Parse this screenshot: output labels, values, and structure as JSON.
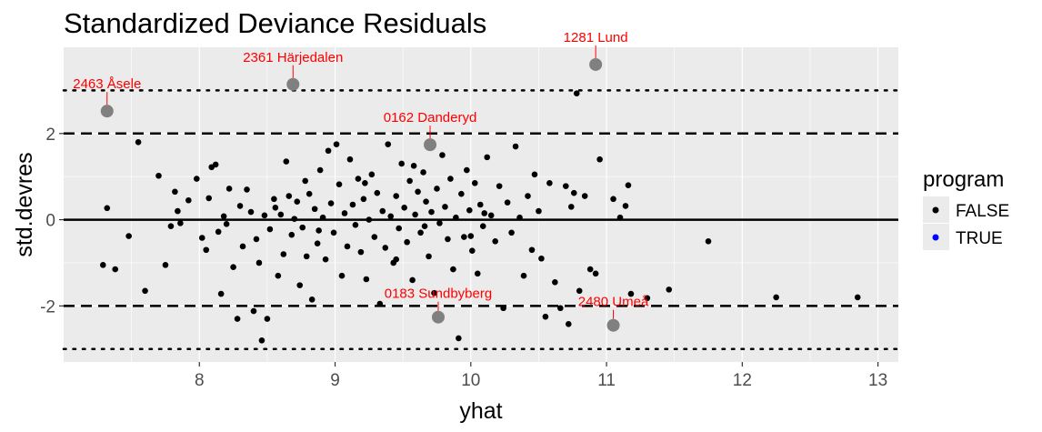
{
  "chart_data": {
    "type": "scatter",
    "title": "Standardized Deviance Residuals",
    "xlabel": "yhat",
    "ylabel": "std.devres",
    "xlim": [
      7.0,
      13.15
    ],
    "ylim": [
      -3.3,
      4.0
    ],
    "xticks": [
      8,
      9,
      10,
      11,
      12,
      13
    ],
    "yticks": [
      -2,
      0,
      2
    ],
    "grid": true,
    "legend": {
      "title": "program",
      "position": "right",
      "entries": [
        {
          "label": "FALSE",
          "color": "#000000"
        },
        {
          "label": "TRUE",
          "color": "#0000ff"
        }
      ]
    },
    "reference_lines": [
      {
        "y": 0,
        "style": "solid"
      },
      {
        "y": 2,
        "style": "dashed"
      },
      {
        "y": -2,
        "style": "dashed"
      },
      {
        "y": 3,
        "style": "dotted"
      },
      {
        "y": -3,
        "style": "dotted"
      }
    ],
    "highlighted_color": "#808080",
    "highlighted": [
      {
        "label": "2463 Åsele",
        "x": 7.32,
        "y": 2.52
      },
      {
        "label": "2361 Härjedalen",
        "x": 8.69,
        "y": 3.14
      },
      {
        "label": "1281 Lund",
        "x": 10.92,
        "y": 3.6
      },
      {
        "label": "0162 Danderyd",
        "x": 9.7,
        "y": 1.74
      },
      {
        "label": "0183 Sundbyberg",
        "x": 9.76,
        "y": -2.26
      },
      {
        "label": "2480 Umeå",
        "x": 11.05,
        "y": -2.45
      }
    ],
    "series": [
      {
        "name": "FALSE",
        "color": "#000000",
        "points": [
          [
            7.29,
            -1.05
          ],
          [
            7.32,
            0.27
          ],
          [
            7.38,
            -1.15
          ],
          [
            7.48,
            -0.38
          ],
          [
            7.55,
            1.8
          ],
          [
            7.6,
            -1.65
          ],
          [
            7.7,
            1.02
          ],
          [
            7.75,
            -1.05
          ],
          [
            7.79,
            -0.15
          ],
          [
            7.82,
            0.65
          ],
          [
            7.84,
            0.2
          ],
          [
            7.86,
            -0.08
          ],
          [
            7.92,
            0.45
          ],
          [
            7.98,
            0.95
          ],
          [
            8.02,
            -0.42
          ],
          [
            8.05,
            -0.7
          ],
          [
            8.07,
            0.5
          ],
          [
            8.09,
            1.22
          ],
          [
            8.12,
            1.28
          ],
          [
            8.14,
            -0.28
          ],
          [
            8.16,
            -1.72
          ],
          [
            8.18,
            0.08
          ],
          [
            8.2,
            -0.1
          ],
          [
            8.22,
            0.72
          ],
          [
            8.25,
            -1.1
          ],
          [
            8.28,
            -2.3
          ],
          [
            8.3,
            0.32
          ],
          [
            8.32,
            -0.62
          ],
          [
            8.35,
            0.7
          ],
          [
            8.38,
            0.18
          ],
          [
            8.4,
            -2.12
          ],
          [
            8.42,
            -0.45
          ],
          [
            8.44,
            -1.0
          ],
          [
            8.46,
            -2.8
          ],
          [
            8.48,
            0.1
          ],
          [
            8.5,
            -2.3
          ],
          [
            8.52,
            -0.22
          ],
          [
            8.55,
            0.48
          ],
          [
            8.58,
            -1.3
          ],
          [
            8.6,
            0.12
          ],
          [
            8.62,
            -0.8
          ],
          [
            8.64,
            1.35
          ],
          [
            8.66,
            0.55
          ],
          [
            8.68,
            -0.35
          ],
          [
            8.7,
            0.02
          ],
          [
            8.72,
            0.42
          ],
          [
            8.74,
            -1.52
          ],
          [
            8.76,
            -0.18
          ],
          [
            8.78,
            0.9
          ],
          [
            8.79,
            -0.85
          ],
          [
            8.81,
            0.6
          ],
          [
            8.83,
            -1.85
          ],
          [
            8.85,
            0.25
          ],
          [
            8.87,
            -0.55
          ],
          [
            8.89,
            1.15
          ],
          [
            8.91,
            0.05
          ],
          [
            8.93,
            -0.92
          ],
          [
            8.95,
            1.6
          ],
          [
            8.97,
            0.38
          ],
          [
            8.99,
            -0.3
          ],
          [
            9.01,
            1.75
          ],
          [
            9.03,
            0.82
          ],
          [
            9.05,
            -1.3
          ],
          [
            9.07,
            0.15
          ],
          [
            9.09,
            -0.62
          ],
          [
            9.11,
            1.4
          ],
          [
            9.13,
            0.35
          ],
          [
            9.15,
            -0.12
          ],
          [
            9.17,
            0.95
          ],
          [
            9.19,
            -0.75
          ],
          [
            9.21,
            0.48
          ],
          [
            9.23,
            -1.38
          ],
          [
            9.25,
            0.0
          ],
          [
            9.27,
            1.05
          ],
          [
            9.29,
            -0.4
          ],
          [
            9.31,
            0.62
          ],
          [
            9.33,
            -1.95
          ],
          [
            9.35,
            0.2
          ],
          [
            9.37,
            -0.65
          ],
          [
            9.39,
            1.75
          ],
          [
            9.41,
            0.08
          ],
          [
            9.43,
            -1.0
          ],
          [
            9.45,
            0.55
          ],
          [
            9.47,
            -0.2
          ],
          [
            9.49,
            1.3
          ],
          [
            9.51,
            0.28
          ],
          [
            9.53,
            -0.52
          ],
          [
            9.55,
            0.9
          ],
          [
            9.57,
            -1.4
          ],
          [
            9.59,
            0.12
          ],
          [
            9.61,
            0.65
          ],
          [
            9.63,
            -0.3
          ],
          [
            9.65,
            1.1
          ],
          [
            9.67,
            0.42
          ],
          [
            9.69,
            -0.85
          ],
          [
            9.71,
            0.18
          ],
          [
            9.73,
            -1.7
          ],
          [
            9.75,
            0.72
          ],
          [
            9.77,
            -0.08
          ],
          [
            9.79,
            1.5
          ],
          [
            9.81,
            0.3
          ],
          [
            9.83,
            -0.45
          ],
          [
            9.85,
            0.95
          ],
          [
            9.87,
            -1.15
          ],
          [
            9.89,
            0.05
          ],
          [
            9.91,
            -2.75
          ],
          [
            9.93,
            0.6
          ],
          [
            9.95,
            -0.4
          ],
          [
            9.97,
            1.15
          ],
          [
            9.99,
            0.22
          ],
          [
            10.01,
            -0.72
          ],
          [
            10.03,
            0.85
          ],
          [
            10.05,
            -1.25
          ],
          [
            10.07,
            0.35
          ],
          [
            10.09,
            -0.15
          ],
          [
            10.12,
            1.45
          ],
          [
            10.15,
            0.1
          ],
          [
            10.18,
            -0.5
          ],
          [
            10.21,
            0.78
          ],
          [
            10.24,
            -2.05
          ],
          [
            10.27,
            0.4
          ],
          [
            10.3,
            -0.3
          ],
          [
            10.33,
            1.7
          ],
          [
            10.36,
            0.05
          ],
          [
            10.39,
            -1.3
          ],
          [
            10.42,
            0.55
          ],
          [
            10.45,
            -0.7
          ],
          [
            10.47,
            1.05
          ],
          [
            10.5,
            0.2
          ],
          [
            10.52,
            -0.9
          ],
          [
            10.55,
            -2.25
          ],
          [
            10.58,
            0.85
          ],
          [
            10.62,
            -1.45
          ],
          [
            10.66,
            -2.05
          ],
          [
            10.7,
            0.78
          ],
          [
            10.72,
            -2.42
          ],
          [
            10.74,
            0.3
          ],
          [
            10.76,
            0.62
          ],
          [
            10.78,
            2.93
          ],
          [
            10.8,
            -1.65
          ],
          [
            10.84,
            0.55
          ],
          [
            10.88,
            -1.15
          ],
          [
            10.92,
            -1.25
          ],
          [
            10.95,
            1.4
          ],
          [
            11.05,
            0.48
          ],
          [
            11.1,
            0.05
          ],
          [
            11.14,
            0.32
          ],
          [
            11.16,
            0.8
          ],
          [
            11.18,
            -1.72
          ],
          [
            11.3,
            -1.82
          ],
          [
            11.46,
            -1.62
          ],
          [
            11.75,
            -0.5
          ],
          [
            12.25,
            -1.8
          ],
          [
            12.85,
            -1.8
          ],
          [
            10.0,
            -0.38
          ],
          [
            9.45,
            -0.92
          ],
          [
            8.88,
            -0.25
          ],
          [
            9.22,
            0.85
          ],
          [
            9.58,
            1.25
          ],
          [
            10.1,
            0.15
          ],
          [
            8.56,
            0.28
          ],
          [
            9.66,
            -0.15
          ]
        ]
      },
      {
        "name": "TRUE",
        "color": "#0000ff",
        "points": []
      }
    ]
  }
}
